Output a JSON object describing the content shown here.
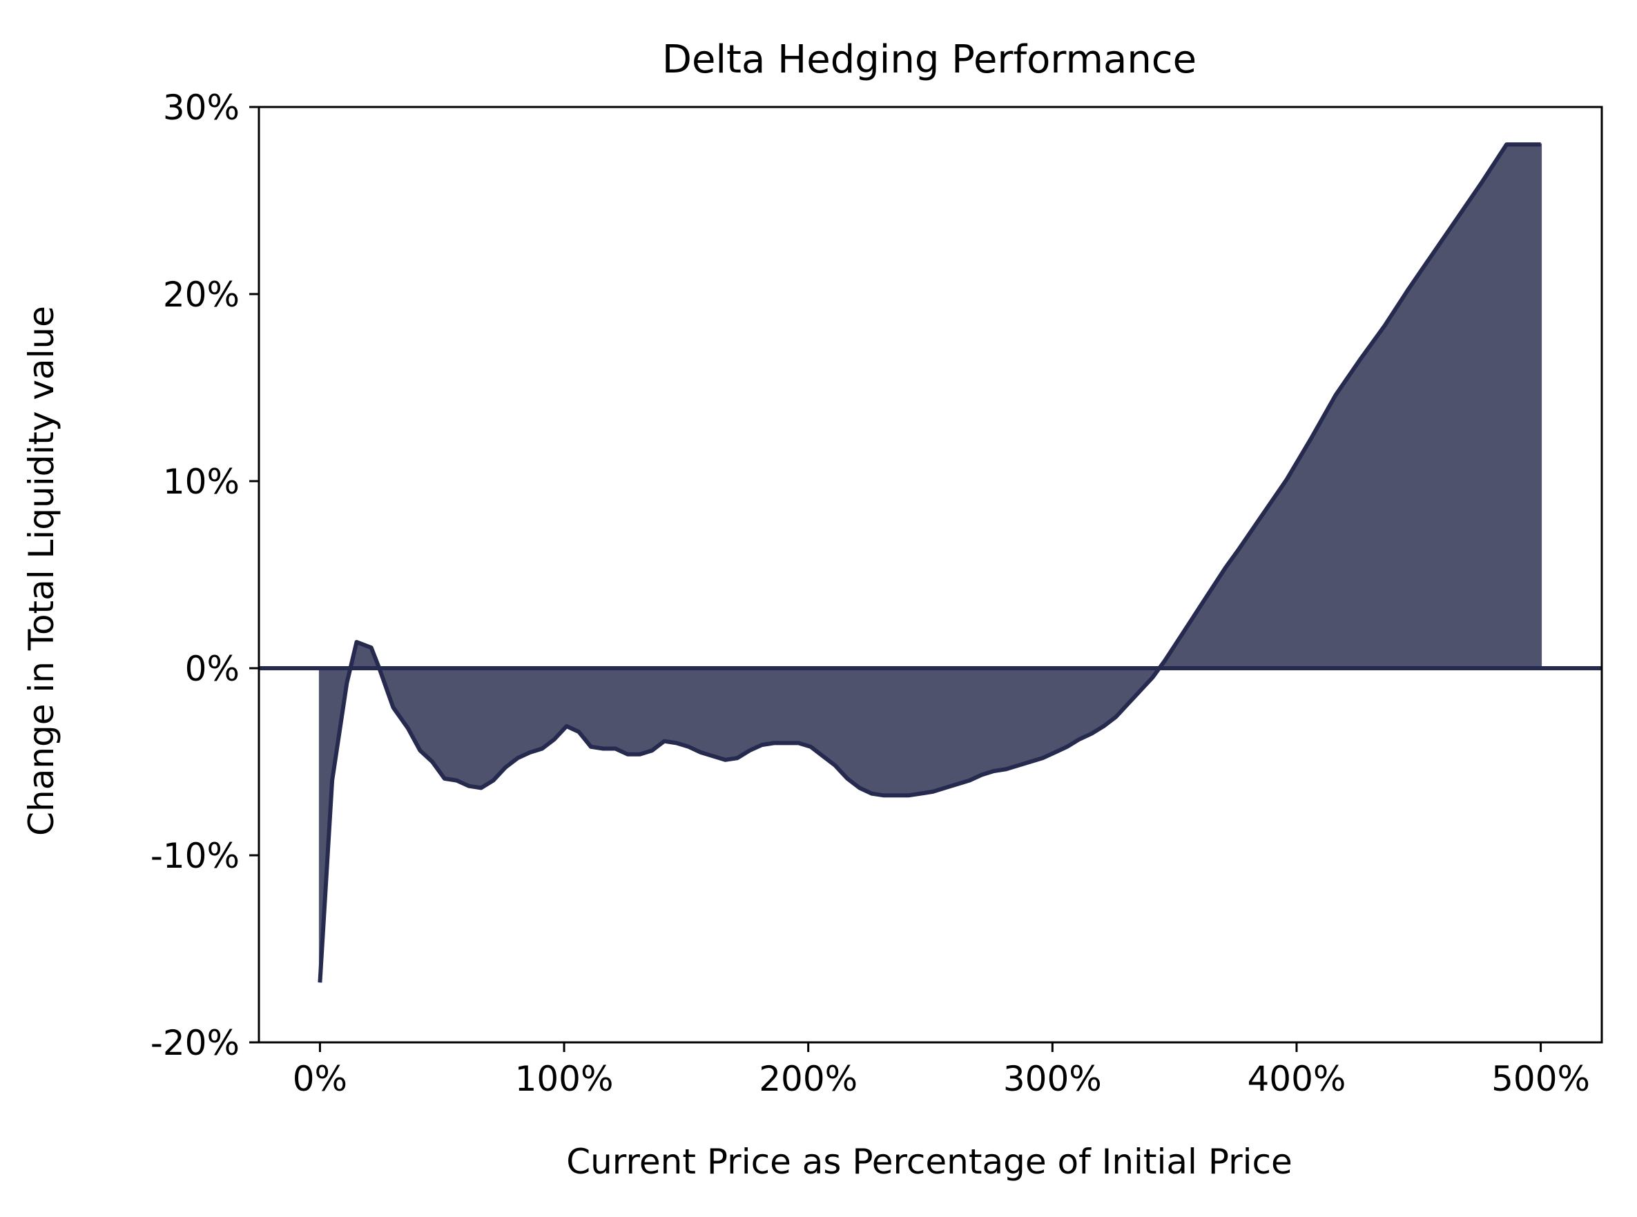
{
  "chart_data": {
    "type": "area",
    "title": "Delta Hedging Performance",
    "xlabel": "Current Price as Percentage of Initial Price",
    "ylabel": "Change in Total Liquidity value",
    "xlim": [
      -25,
      525
    ],
    "ylim": [
      -20,
      30
    ],
    "xticks": [
      0,
      100,
      200,
      300,
      400,
      500
    ],
    "xtick_labels": [
      "0%",
      "100%",
      "200%",
      "300%",
      "400%",
      "500%"
    ],
    "yticks": [
      -20,
      -10,
      0,
      10,
      20,
      30
    ],
    "ytick_labels": [
      "-20%",
      "-10%",
      "0%",
      "10%",
      "20%",
      "30%"
    ],
    "grid": false,
    "baseline": 0,
    "colors": {
      "line": "#262a4e",
      "fill": "#4f526d"
    },
    "series": [
      {
        "x": [
          0,
          5,
          11,
          15,
          21,
          24,
          30,
          36,
          41,
          46,
          51,
          56,
          61,
          66,
          71,
          76,
          81,
          86,
          91,
          96,
          101,
          106,
          111,
          116,
          121,
          126,
          131,
          136,
          141,
          146,
          151,
          156,
          161,
          166,
          171,
          176,
          181,
          186,
          191,
          196,
          201,
          206,
          211,
          216,
          221,
          226,
          231,
          236,
          241,
          246,
          251,
          256,
          261,
          266,
          271,
          276,
          281,
          286,
          291,
          296,
          301,
          306,
          311,
          316,
          321,
          326,
          331,
          336,
          341,
          346,
          351,
          356,
          361,
          366,
          371,
          376,
          386,
          396,
          406,
          416,
          426,
          436,
          446,
          456,
          466,
          476,
          486,
          496,
          500
        ],
        "y": [
          -16.8,
          -6.0,
          -0.8,
          1.4,
          1.1,
          0.1,
          -2.1,
          -3.2,
          -4.4,
          -5.0,
          -5.9,
          -6.0,
          -6.3,
          -6.4,
          -6.0,
          -5.3,
          -4.8,
          -4.5,
          -4.3,
          -3.8,
          -3.1,
          -3.4,
          -4.2,
          -4.3,
          -4.3,
          -4.6,
          -4.6,
          -4.4,
          -3.9,
          -4.0,
          -4.2,
          -4.5,
          -4.7,
          -4.9,
          -4.8,
          -4.4,
          -4.1,
          -4.0,
          -4.0,
          -4.0,
          -4.2,
          -4.7,
          -5.2,
          -5.9,
          -6.4,
          -6.7,
          -6.8,
          -6.8,
          -6.8,
          -6.7,
          -6.6,
          -6.4,
          -6.2,
          -6.0,
          -5.7,
          -5.5,
          -5.4,
          -5.2,
          -5.0,
          -4.8,
          -4.5,
          -4.2,
          -3.8,
          -3.5,
          -3.1,
          -2.6,
          -1.9,
          -1.2,
          -0.5,
          0.4,
          1.4,
          2.4,
          3.4,
          4.4,
          5.4,
          6.3,
          8.2,
          10.1,
          12.3,
          14.6,
          16.5,
          18.3,
          20.3,
          22.2,
          24.1,
          26.0,
          28.0,
          28.0,
          28.0
        ]
      }
    ]
  }
}
